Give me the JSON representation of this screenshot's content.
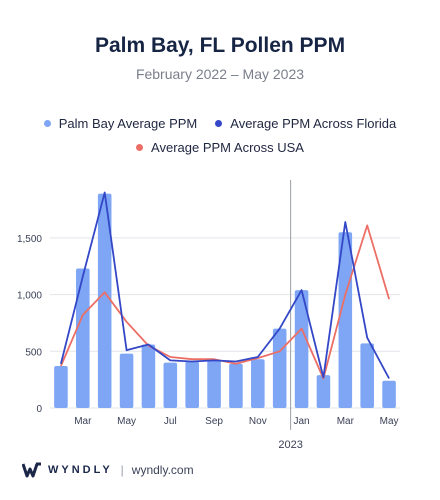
{
  "header": {
    "title": "Palm Bay, FL Pollen PPM",
    "subtitle": "February 2022 – May 2023"
  },
  "colors": {
    "bar": "#7ea6f5",
    "florida_line": "#3347c7",
    "usa_line": "#ec6f66",
    "grid": "#e3e5ea",
    "axis_text": "#3a4157",
    "divider": "#9b9ea6"
  },
  "chart_data": {
    "type": "bar",
    "categories": [
      "Feb",
      "Mar",
      "Apr",
      "May",
      "Jun",
      "Jul",
      "Aug",
      "Sep",
      "Oct",
      "Nov",
      "Dec",
      "Jan",
      "Feb",
      "Mar",
      "Apr",
      "May"
    ],
    "tick_labels": [
      "Mar",
      "May",
      "Jul",
      "Sep",
      "Nov",
      "Jan",
      "Mar",
      "May"
    ],
    "tick_category_index": [
      1,
      3,
      5,
      7,
      9,
      11,
      13,
      15
    ],
    "year_label": "2023",
    "year_divider_after_index": 10,
    "series": [
      {
        "name": "Palm Bay Average PPM",
        "kind": "bar",
        "values": [
          370,
          1230,
          1890,
          480,
          560,
          400,
          410,
          420,
          390,
          430,
          700,
          1040,
          290,
          1550,
          570,
          240
        ]
      },
      {
        "name": "Average PPM Across Florida",
        "kind": "line",
        "values": [
          390,
          1160,
          1900,
          510,
          560,
          420,
          410,
          420,
          410,
          450,
          700,
          1040,
          270,
          1640,
          620,
          260
        ]
      },
      {
        "name": "Average PPM Across USA",
        "kind": "line",
        "values": [
          370,
          820,
          1020,
          760,
          550,
          450,
          430,
          430,
          390,
          440,
          500,
          700,
          260,
          1000,
          1610,
          960
        ]
      }
    ],
    "yticks": [
      0,
      500,
      1000,
      1500
    ],
    "ytick_labels": [
      "0",
      "500",
      "1,000",
      "1,500"
    ],
    "ylim": [
      0,
      1900
    ],
    "grid": true,
    "legend_position": "top"
  },
  "footer": {
    "brand": "WYNDLY",
    "separator": "|",
    "site": "wyndly.com"
  }
}
